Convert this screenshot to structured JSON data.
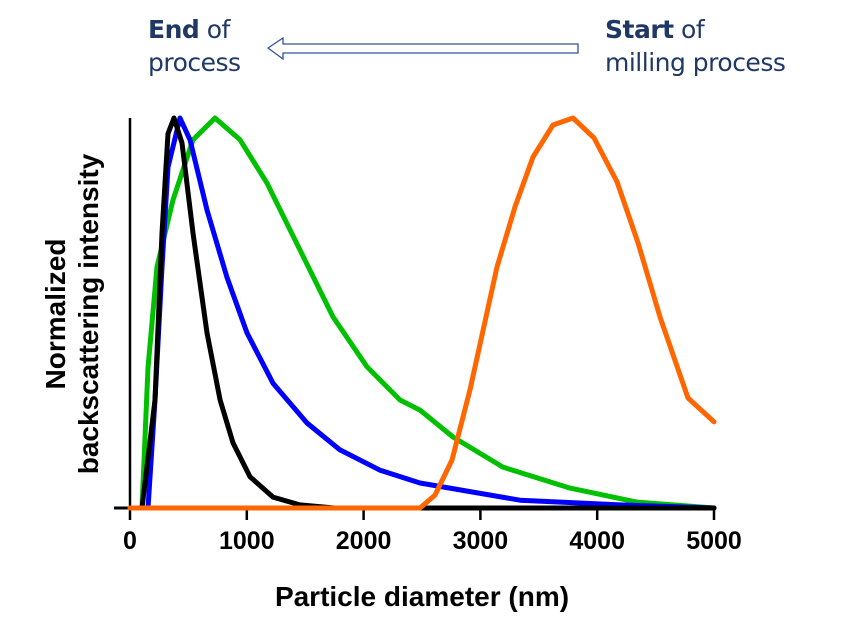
{
  "annotations": {
    "end_bold": "End",
    "end_rest": " of",
    "end_line2": "process",
    "start_bold": "Start",
    "start_rest": " of",
    "start_line2": "milling process",
    "text_color": "#1F3864",
    "arrow_direction": "left"
  },
  "chart_data": {
    "type": "line",
    "title": "",
    "xlabel": "Particle diameter (nm)",
    "ylabel_lines": [
      "Normalized",
      "backscattering intensity"
    ],
    "xlim": [
      0,
      5000
    ],
    "ylim": [
      0,
      1
    ],
    "xticks": [
      0,
      1000,
      2000,
      3000,
      4000,
      5000
    ],
    "xtick_labels": [
      "0",
      "1000",
      "2000",
      "3000",
      "4000",
      "5000"
    ],
    "grid": false,
    "legend": "none",
    "series": [
      {
        "name": "green",
        "color": "#00C000",
        "x": [
          103,
          154,
          231,
          368,
          539,
          728,
          942,
          1173,
          1455,
          1738,
          2029,
          2312,
          2483,
          2765,
          3193,
          3767,
          4341,
          5000
        ],
        "y": [
          0,
          0.36,
          0.618,
          0.79,
          0.944,
          1.0,
          0.944,
          0.833,
          0.662,
          0.49,
          0.362,
          0.277,
          0.251,
          0.182,
          0.105,
          0.051,
          0.015,
          0
        ]
      },
      {
        "name": "blue",
        "color": "#0000FF",
        "x": [
          154,
          214,
          274,
          325,
          428,
          514,
          659,
          830,
          1002,
          1224,
          1515,
          1798,
          2140,
          2483,
          3339,
          4195,
          5000
        ],
        "y": [
          0,
          0.277,
          0.618,
          0.874,
          1.0,
          0.944,
          0.764,
          0.592,
          0.449,
          0.32,
          0.218,
          0.149,
          0.097,
          0.064,
          0.02,
          0.008,
          0
        ]
      },
      {
        "name": "black",
        "color": "#000000",
        "x": [
          103,
          214,
          274,
          325,
          377,
          445,
          539,
          659,
          771,
          882,
          1027,
          1224,
          1455,
          1750,
          5000
        ],
        "y": [
          0,
          0.277,
          0.705,
          0.96,
          1.0,
          0.936,
          0.705,
          0.449,
          0.277,
          0.167,
          0.08,
          0.028,
          0.008,
          0,
          0
        ]
      },
      {
        "name": "orange",
        "color": "#FF6600",
        "x": [
          0,
          2483,
          2611,
          2757,
          2911,
          3142,
          3296,
          3450,
          3622,
          3793,
          3973,
          4170,
          4349,
          4538,
          4777,
          5000
        ],
        "y": [
          0,
          0,
          0.033,
          0.123,
          0.303,
          0.618,
          0.772,
          0.9,
          0.982,
          1.0,
          0.949,
          0.836,
          0.68,
          0.49,
          0.282,
          0.221
        ]
      }
    ]
  }
}
